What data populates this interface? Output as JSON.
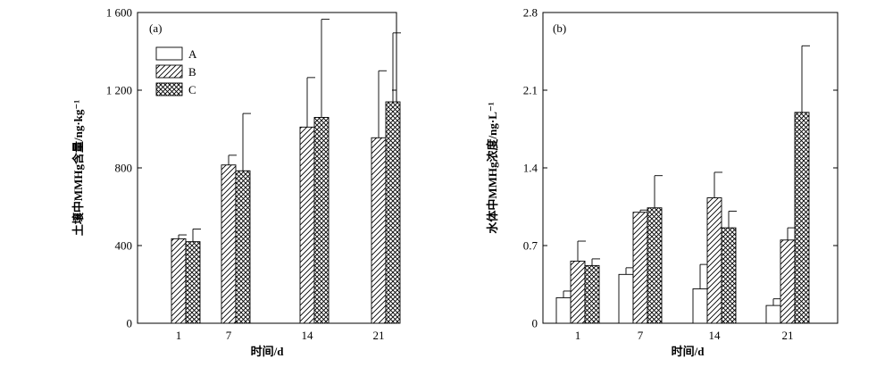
{
  "chart_data": [
    {
      "type": "bar",
      "panel_label": "(a)",
      "xlabel": "时间/d",
      "ylabel": "土壤中MMHg含量/ng·kg⁻¹",
      "ylim": [
        0,
        1600
      ],
      "yticks": [
        "0",
        "400",
        "800",
        "1 200",
        "1 600"
      ],
      "ytick_values": [
        0,
        400,
        800,
        1200,
        1600
      ],
      "categories": [
        "1",
        "7",
        "14",
        "21"
      ],
      "legend_position": "top-left",
      "series": [
        {
          "name": "A",
          "pattern": "empty",
          "values": [
            null,
            null,
            null,
            null
          ],
          "errors": [
            null,
            null,
            null,
            null
          ]
        },
        {
          "name": "B",
          "pattern": "hatch",
          "values": [
            435,
            815,
            1010,
            955
          ],
          "errors": [
            20,
            50,
            255,
            345
          ]
        },
        {
          "name": "C",
          "pattern": "cross",
          "values": [
            420,
            785,
            1060,
            1140
          ],
          "errors": [
            65,
            295,
            505,
            355
          ]
        }
      ]
    },
    {
      "type": "bar",
      "panel_label": "(b)",
      "xlabel": "时间/d",
      "ylabel": "水体中MMHg浓度/ng·L⁻¹",
      "ylim": [
        0,
        2.8
      ],
      "yticks": [
        "0",
        "0.7",
        "1.4",
        "2.1",
        "2.8"
      ],
      "ytick_values": [
        0,
        0.7,
        1.4,
        2.1,
        2.8
      ],
      "categories": [
        "1",
        "7",
        "14",
        "21"
      ],
      "series": [
        {
          "name": "A",
          "pattern": "empty",
          "values": [
            0.23,
            0.44,
            0.31,
            0.16
          ],
          "errors": [
            0.06,
            0.06,
            0.22,
            0.06
          ]
        },
        {
          "name": "B",
          "pattern": "hatch",
          "values": [
            0.56,
            1.0,
            1.13,
            0.75
          ],
          "errors": [
            0.18,
            0.02,
            0.23,
            0.11
          ]
        },
        {
          "name": "C",
          "pattern": "cross",
          "values": [
            0.52,
            1.04,
            0.86,
            1.9
          ],
          "errors": [
            0.06,
            0.29,
            0.15,
            0.6
          ]
        }
      ]
    }
  ]
}
